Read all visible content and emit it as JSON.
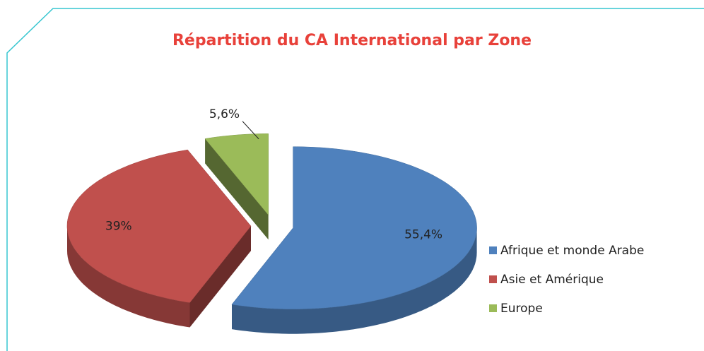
{
  "chart_data": {
    "type": "pie",
    "title": "Répartition du CA International par Zone",
    "categories": [
      "Afrique et monde Arabe",
      "Asie et Amérique",
      "Europe"
    ],
    "values": [
      55.4,
      39,
      5.6
    ],
    "value_labels": [
      "55,4%",
      "39%",
      "5,6%"
    ],
    "colors": [
      "#4f81bd",
      "#c0504d",
      "#9bbb59"
    ],
    "legend": "right"
  }
}
